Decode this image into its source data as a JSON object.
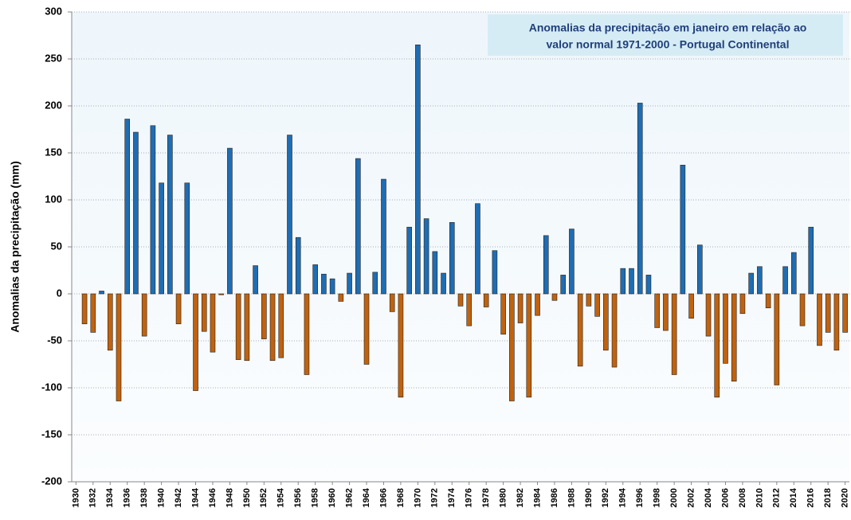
{
  "chart_data": {
    "type": "bar",
    "title": [
      "Anomalias da precipitação em janeiro em relação ao",
      "valor normal   1971-2000 - Portugal Continental"
    ],
    "y_label": "Anomalias da precipitação (mm)",
    "x": [
      1931,
      1932,
      1933,
      1934,
      1935,
      1936,
      1937,
      1938,
      1939,
      1940,
      1941,
      1942,
      1943,
      1944,
      1945,
      1946,
      1947,
      1948,
      1949,
      1950,
      1951,
      1952,
      1953,
      1954,
      1955,
      1956,
      1957,
      1958,
      1959,
      1960,
      1961,
      1962,
      1963,
      1964,
      1965,
      1966,
      1967,
      1968,
      1969,
      1970,
      1971,
      1972,
      1973,
      1974,
      1975,
      1976,
      1977,
      1978,
      1979,
      1980,
      1981,
      1982,
      1983,
      1984,
      1985,
      1986,
      1987,
      1988,
      1989,
      1990,
      1991,
      1992,
      1993,
      1994,
      1995,
      1996,
      1997,
      1998,
      1999,
      2000,
      2001,
      2002,
      2003,
      2004,
      2005,
      2006,
      2007,
      2008,
      2009,
      2010,
      2011,
      2012,
      2013,
      2014,
      2015,
      2016,
      2017,
      2018,
      2019,
      2020
    ],
    "values": [
      -32,
      -41,
      3,
      -60,
      -114,
      186,
      172,
      -45,
      179,
      118,
      169,
      -32,
      118,
      -103,
      -40,
      -62,
      -1,
      155,
      -70,
      -71,
      30,
      -48,
      -71,
      -68,
      169,
      60,
      -86,
      31,
      21,
      16,
      -8,
      22,
      144,
      -75,
      23,
      122,
      -19,
      -110,
      71,
      265,
      80,
      45,
      22,
      76,
      -13,
      -34,
      96,
      -14,
      46,
      -43,
      -114,
      -31,
      -110,
      -23,
      62,
      -7,
      20,
      69,
      -77,
      -13,
      -24,
      -60,
      -78,
      27,
      27,
      203,
      20,
      -36,
      -39,
      -86,
      137,
      -26,
      52,
      -45,
      -110,
      -74,
      -93,
      -21,
      22,
      29,
      -15,
      -97,
      29,
      44,
      -34,
      71,
      -55,
      -41,
      -60,
      -41
    ],
    "positive_color": "#1f6db3",
    "negative_color": "#c0620f",
    "xlim": [
      1929.5,
      2020.5
    ],
    "xticks": [
      1930,
      1932,
      1934,
      1936,
      1938,
      1940,
      1942,
      1944,
      1946,
      1948,
      1950,
      1952,
      1954,
      1956,
      1958,
      1960,
      1962,
      1964,
      1966,
      1968,
      1970,
      1972,
      1974,
      1976,
      1978,
      1980,
      1982,
      1984,
      1986,
      1988,
      1990,
      1992,
      1994,
      1996,
      1998,
      2000,
      2002,
      2004,
      2006,
      2008,
      2010,
      2012,
      2014,
      2016,
      2018,
      2020
    ],
    "ylim": [
      -200,
      300
    ],
    "yticks": [
      -200,
      -150,
      -100,
      -50,
      0,
      50,
      100,
      150,
      200,
      250,
      300
    ],
    "grid": true
  }
}
